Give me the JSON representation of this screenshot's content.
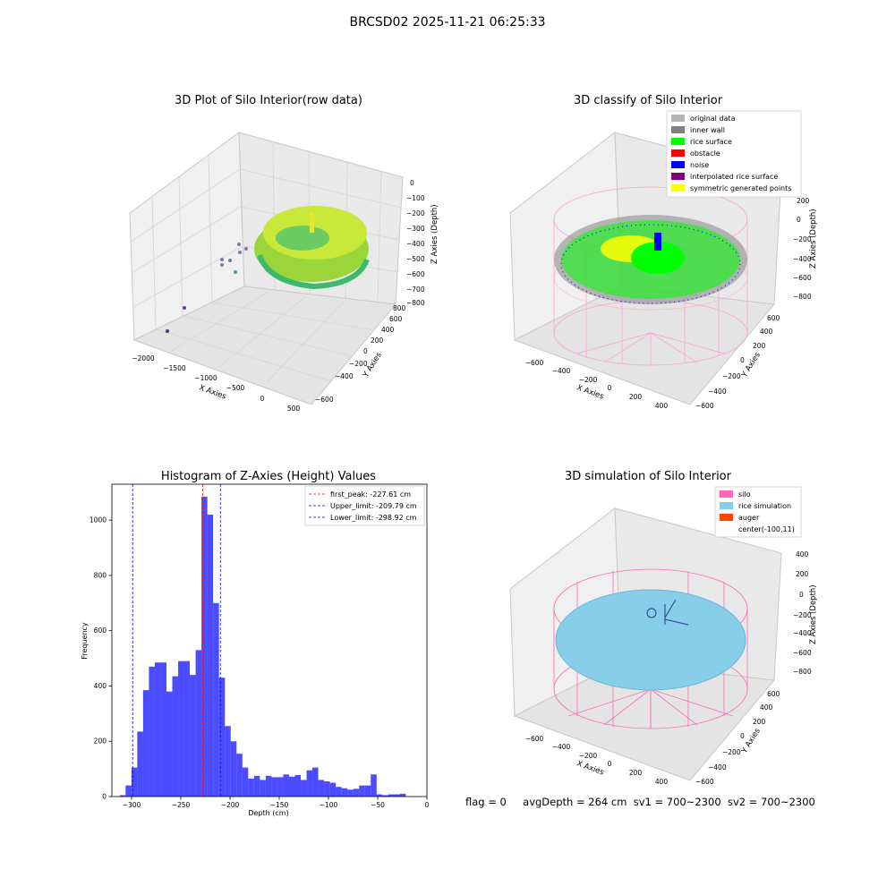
{
  "suptitle": "BRCSD02 2025-11-21 06:25:33",
  "colors": {
    "rice_surface": "#00ff00",
    "inner_wall": "#808080",
    "original_data": "#b4b4b4",
    "obstacle": "#ff0000",
    "noise": "#0000ff",
    "interpolated": "#800080",
    "symmetric": "#ffff00",
    "silo": "#ff69b4",
    "rice_sim": "#87ceeb",
    "auger": "#ff4500",
    "hist_bar": "#0000ff",
    "peak_line": "#ff0000",
    "limit_line": "#0000ff"
  },
  "panel1": {
    "title": "3D Plot of Silo Interior(row data)",
    "xlabel": "X Axies",
    "ylabel": "Y Axies",
    "zlabel": "Z Axies (Depth)",
    "xticks": [
      "−2000",
      "−1500",
      "−1000",
      "−500",
      "0",
      "500"
    ],
    "yticks": [
      "−600",
      "−400",
      "−200",
      "0",
      "200",
      "400",
      "600",
      "800"
    ],
    "zticks": [
      "0",
      "−100",
      "−200",
      "−300",
      "−400",
      "−500",
      "−600",
      "−700",
      "−800"
    ]
  },
  "panel2": {
    "title": "3D classify of Silo Interior",
    "xlabel": "X Axies",
    "ylabel": "Y Axies",
    "zlabel": "Z Axies (Depth)",
    "xticks": [
      "−600",
      "−400",
      "−200",
      "0",
      "200",
      "400"
    ],
    "yticks": [
      "−600",
      "−400",
      "−200",
      "0",
      "200",
      "400",
      "600"
    ],
    "zticks": [
      "200",
      "0",
      "−200",
      "−400",
      "−600",
      "−800"
    ],
    "legend": [
      "original data",
      "inner wall",
      "rice surface",
      "obstacle",
      "noise",
      "interpolated rice surface",
      "symmetric generated points"
    ]
  },
  "panel3": {
    "title": "3D simulation of Silo Interior",
    "xlabel": "X Axies",
    "ylabel": "Y Axies",
    "zlabel": "Z Axies (Depth)",
    "xticks": [
      "−600",
      "−400",
      "−200",
      "0",
      "200",
      "400"
    ],
    "yticks": [
      "−600",
      "−400",
      "−200",
      "0",
      "200",
      "400",
      "600"
    ],
    "zticks": [
      "400",
      "200",
      "0",
      "−200",
      "−400",
      "−600",
      "−800"
    ],
    "legend": [
      "silo",
      "rice simulation",
      "auger",
      "center(-100,11)"
    ]
  },
  "footer": {
    "flag": "flag = 0",
    "avg": "avgDepth = 264 cm",
    "sv1": "sv1 = 700~2300",
    "sv2": "sv2 = 700~2300"
  },
  "chart_data": {
    "type": "bar",
    "title": "Histogram of Z-Axies (Height) Values",
    "xlabel": "Depth (cm)",
    "ylabel": "Frequency",
    "xlim": [
      -320,
      0
    ],
    "ylim": [
      0,
      1130
    ],
    "xticks": [
      "−300",
      "−250",
      "−200",
      "−150",
      "−100",
      "−50",
      "0"
    ],
    "yticks": [
      "0",
      "200",
      "400",
      "600",
      "800",
      "1000"
    ],
    "bin_start": -312,
    "bin_width": 5.93,
    "values": [
      5,
      40,
      105,
      235,
      385,
      470,
      485,
      485,
      380,
      435,
      490,
      490,
      440,
      530,
      1085,
      1020,
      700,
      430,
      255,
      200,
      155,
      105,
      65,
      75,
      60,
      75,
      70,
      70,
      80,
      72,
      78,
      60,
      95,
      105,
      60,
      55,
      50,
      35,
      30,
      25,
      28,
      40,
      40,
      80,
      8,
      5,
      8,
      8,
      10
    ],
    "lines": [
      {
        "label": "first_peak: -227.61 cm",
        "x": -227.61,
        "style": "peak"
      },
      {
        "label": "Upper_limit: -209.79 cm",
        "x": -209.79,
        "style": "limit"
      },
      {
        "label": "Lower_limit: -298.92 cm",
        "x": -298.92,
        "style": "limit"
      }
    ]
  }
}
